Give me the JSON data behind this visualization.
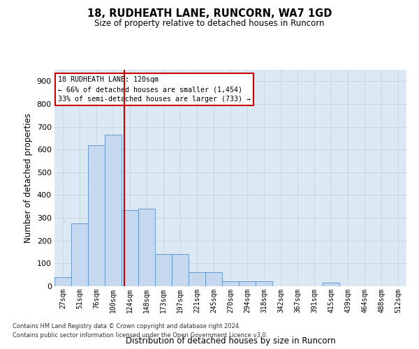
{
  "title1": "18, RUDHEATH LANE, RUNCORN, WA7 1GD",
  "title2": "Size of property relative to detached houses in Runcorn",
  "xlabel": "Distribution of detached houses by size in Runcorn",
  "ylabel": "Number of detached properties",
  "bin_labels": [
    "27sqm",
    "51sqm",
    "76sqm",
    "100sqm",
    "124sqm",
    "148sqm",
    "173sqm",
    "197sqm",
    "221sqm",
    "245sqm",
    "270sqm",
    "294sqm",
    "318sqm",
    "342sqm",
    "367sqm",
    "391sqm",
    "415sqm",
    "439sqm",
    "464sqm",
    "488sqm",
    "512sqm"
  ],
  "bar_values": [
    40,
    275,
    620,
    665,
    335,
    340,
    140,
    140,
    60,
    60,
    20,
    20,
    20,
    0,
    0,
    0,
    15,
    0,
    0,
    0,
    0
  ],
  "bar_color": "#c5d8ee",
  "bar_edge_color": "#6699cc",
  "vline_x": 3.67,
  "vline_color": "#cc0000",
  "annotation_line1": "18 RUDHEATH LANE: 120sqm",
  "annotation_line2": "← 66% of detached houses are smaller (1,454)",
  "annotation_line3": "33% of semi-detached houses are larger (733) →",
  "annotation_box_facecolor": "#ffffff",
  "annotation_box_edgecolor": "#cc0000",
  "ylim": [
    0,
    950
  ],
  "yticks": [
    0,
    100,
    200,
    300,
    400,
    500,
    600,
    700,
    800,
    900
  ],
  "grid_color": "#c8d4e0",
  "bg_color": "#dce8f4",
  "footnote1": "Contains HM Land Registry data © Crown copyright and database right 2024.",
  "footnote2": "Contains public sector information licensed under the Open Government Licence v3.0."
}
